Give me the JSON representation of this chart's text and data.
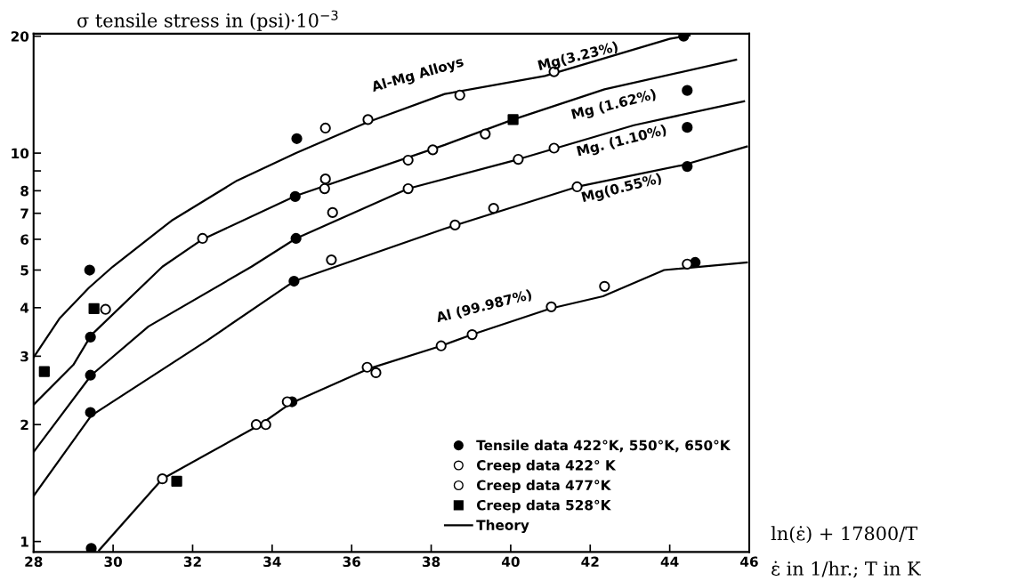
{
  "chart_data": {
    "type": "scatter",
    "ylabel": "σ tensile stress in (psi)·10$^{−3}$",
    "xlabel": "ln(ε̇) + 17800/T",
    "annotations": [
      "ε̇ in 1/hr.; T in K",
      "Al-Mg Alloys",
      "Mg(3.23%)",
      "Mg (1.62%)",
      "Mg. (1.10%)",
      "Mg(0.55%)",
      "Al (99.987%)"
    ],
    "xlim": [
      28,
      46
    ],
    "xticks": [
      28,
      30,
      32,
      34,
      36,
      38,
      40,
      42,
      44,
      46
    ],
    "ylim": [
      0.94,
      20.3
    ],
    "yticks": [
      1,
      2,
      3,
      4,
      5,
      6,
      7,
      8,
      {
        "value": 9,
        "label": null
      },
      10,
      20
    ],
    "log": "y",
    "grid": false,
    "legend": "bottom right",
    "series": [
      {
        "name": "Tensile data 422°K, 550°K, 650°K",
        "marker": "circle",
        "color": "#000000",
        "x": [
          34.62,
          29.41,
          34.58,
          34.6,
          34.55,
          29.43,
          29.43,
          29.43,
          29.45,
          34.5,
          44.35,
          44.44,
          44.44,
          44.44,
          44.64
        ],
        "values": [
          10.9,
          5.0,
          7.73,
          6.03,
          4.68,
          3.36,
          2.68,
          2.15,
          0.96,
          2.29,
          20.0,
          14.5,
          11.65,
          9.24,
          5.23
        ]
      },
      {
        "name": "Creep data 422° K",
        "marker": "circle",
        "color": "#ffffff",
        "x": [
          35.34,
          36.41,
          32.25,
          35.34,
          35.32,
          37.42,
          38.04,
          35.52,
          37.42,
          35.49,
          41.09,
          38.72,
          39.36,
          40.19,
          41.09,
          41.67,
          39.57,
          38.6,
          44.44,
          42.36,
          29.81,
          31.24,
          33.6,
          33.84,
          34.38,
          36.39,
          36.61,
          38.25,
          39.03,
          41.02
        ],
        "values": [
          11.6,
          12.2,
          6.03,
          8.58,
          8.1,
          9.59,
          10.2,
          7.03,
          8.1,
          5.31,
          16.2,
          14.1,
          11.2,
          9.64,
          10.3,
          8.19,
          7.21,
          6.53,
          5.18,
          4.54,
          3.96,
          1.45,
          2.0,
          2.0,
          2.29,
          2.81,
          2.72,
          3.19,
          3.41,
          4.02
        ]
      },
      {
        "name": "Creep data 477°K",
        "marker": "circle",
        "color": "#ffffff"
      },
      {
        "name": "Creep data 528°K",
        "marker": "square",
        "color": "#000000",
        "x": [
          28.27,
          29.52,
          31.6,
          40.06
        ],
        "values": [
          2.74,
          3.98,
          1.43,
          12.2
        ]
      },
      {
        "name": "Theory",
        "type": "line",
        "line_style": "solid",
        "color": "#000000",
        "x": [
          28,
          28.65,
          29.39,
          29.99,
          31.47,
          33.12,
          34.6,
          36.39,
          38.34,
          40.86,
          44.0,
          44.5
        ],
        "values": [
          2.98,
          3.75,
          4.5,
          5.1,
          6.7,
          8.5,
          10.0,
          12.0,
          14.2,
          15.8,
          19.7,
          20.1
        ]
      },
      {
        "type": "line",
        "line_style": "solid",
        "color": "#000000",
        "x": [
          28,
          29.0,
          29.45,
          31.24,
          32.25,
          34.6,
          38.34,
          40.06,
          42.36,
          45.67
        ],
        "values": [
          2.25,
          2.85,
          3.4,
          5.1,
          6.0,
          7.77,
          10.5,
          12.2,
          14.6,
          17.4
        ]
      },
      {
        "type": "line",
        "line_style": "solid",
        "color": "#000000",
        "x": [
          28,
          29.45,
          30.89,
          33.48,
          34.6,
          37.42,
          40.19,
          43.1,
          45.87
        ],
        "values": [
          1.7,
          2.68,
          3.58,
          5.1,
          6.03,
          8.1,
          9.64,
          11.8,
          13.6
        ]
      },
      {
        "type": "line",
        "line_style": "solid",
        "color": "#000000",
        "x": [
          28,
          29.45,
          32.36,
          34.55,
          38.34,
          41.67,
          44.38,
          45.94
        ],
        "values": [
          1.31,
          2.11,
          3.29,
          4.68,
          6.39,
          8.19,
          9.34,
          10.4
        ]
      },
      {
        "type": "line",
        "line_style": "solid",
        "color": "#000000",
        "x": [
          29.65,
          31.24,
          33.7,
          34.47,
          36.45,
          38.25,
          39.03,
          41.0,
          42.32,
          43.86,
          45.94
        ],
        "values": [
          0.95,
          1.45,
          2.0,
          2.27,
          2.79,
          3.19,
          3.41,
          3.98,
          4.28,
          5.0,
          5.23
        ]
      }
    ]
  }
}
